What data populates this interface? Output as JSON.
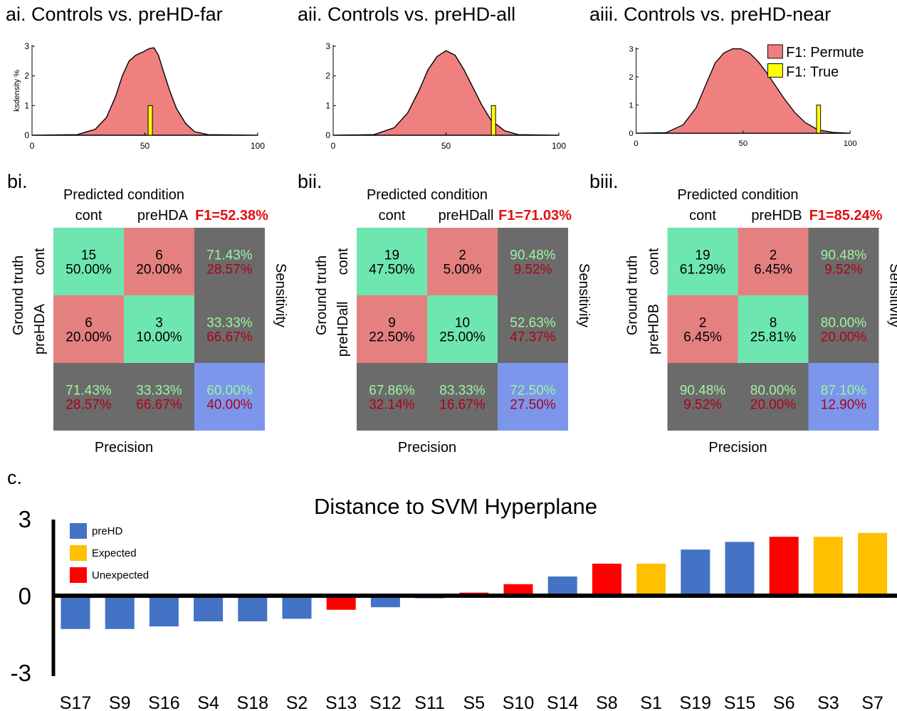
{
  "density_panels": [
    {
      "label": "ai. Controls vs. preHD-far",
      "ylabel": "ksdensity %",
      "f1_true": 52.38
    },
    {
      "label": "aii. Controls vs. preHD-all",
      "ylabel": "",
      "f1_true": 71.03
    },
    {
      "label": "aiii. Controls vs. preHD-near",
      "ylabel": "",
      "f1_true": 85.24
    }
  ],
  "density_axes": {
    "xlim": [
      0,
      100
    ],
    "ylim": [
      0,
      3
    ],
    "xticks": [
      "0",
      "50",
      "100"
    ],
    "yticks": [
      "0",
      "1",
      "2",
      "3"
    ]
  },
  "density_legend": {
    "permute": "F1: Permute",
    "true": "F1: True"
  },
  "colors": {
    "permute_fill": "#f08080",
    "true_bar": "#ffff00",
    "correct_cell": "#6ee6b0",
    "wrong_cell": "#e58080",
    "summary_cell": "#6b6b6b",
    "overall_cell": "#7b96ea",
    "good_text": "#9ef59e",
    "bad_text": "#b0001a",
    "f1_text": "#e01010",
    "preHD": "#4472c4",
    "expected": "#ffc000",
    "unexpected": "#ff0000"
  },
  "confusion_panels": [
    {
      "label": "bi.",
      "header": "Predicted condition",
      "pred_labels": [
        "cont",
        "preHDA"
      ],
      "f1": "F1=52.38%",
      "truth_title": "Ground truth",
      "truth_labels": [
        "cont",
        "preHDA"
      ],
      "sensitivity": "Sensitivity",
      "precision": "Precision",
      "cells": [
        [
          [
            "15",
            "50.00%"
          ],
          [
            "6",
            "20.00%"
          ]
        ],
        [
          [
            "6",
            "20.00%"
          ],
          [
            "3",
            "10.00%"
          ]
        ]
      ],
      "row_summary": [
        [
          "71.43%",
          "28.57%"
        ],
        [
          "33.33%",
          "66.67%"
        ]
      ],
      "col_summary": [
        [
          "71.43%",
          "28.57%"
        ],
        [
          "33.33%",
          "66.67%"
        ]
      ],
      "overall": [
        "60.00%",
        "40.00%"
      ]
    },
    {
      "label": "bii.",
      "header": "Predicted condition",
      "pred_labels": [
        "cont",
        "preHDall"
      ],
      "f1": "F1=71.03%",
      "truth_title": "Ground truth",
      "truth_labels": [
        "cont",
        "preHDall"
      ],
      "sensitivity": "Sensitivity",
      "precision": "Precision",
      "cells": [
        [
          [
            "19",
            "47.50%"
          ],
          [
            "2",
            "5.00%"
          ]
        ],
        [
          [
            "9",
            "22.50%"
          ],
          [
            "10",
            "25.00%"
          ]
        ]
      ],
      "row_summary": [
        [
          "90.48%",
          "9.52%"
        ],
        [
          "52.63%",
          "47.37%"
        ]
      ],
      "col_summary": [
        [
          "67.86%",
          "32.14%"
        ],
        [
          "83.33%",
          "16.67%"
        ]
      ],
      "overall": [
        "72.50%",
        "27.50%"
      ]
    },
    {
      "label": "biii.",
      "header": "Predicted condition",
      "pred_labels": [
        "cont",
        "preHDB"
      ],
      "f1": "F1=85.24%",
      "truth_title": "Ground truth",
      "truth_labels": [
        "cont",
        "preHDB"
      ],
      "sensitivity": "Sensitivity",
      "precision": "Precision",
      "cells": [
        [
          [
            "19",
            "61.29%"
          ],
          [
            "2",
            "6.45%"
          ]
        ],
        [
          [
            "2",
            "6.45%"
          ],
          [
            "8",
            "25.81%"
          ]
        ]
      ],
      "row_summary": [
        [
          "90.48%",
          "9.52%"
        ],
        [
          "80.00%",
          "20.00%"
        ]
      ],
      "col_summary": [
        [
          "90.48%",
          "9.52%"
        ],
        [
          "80.00%",
          "20.00%"
        ]
      ],
      "overall": [
        "87.10%",
        "12.90%"
      ]
    }
  ],
  "section_c_label": "c.",
  "chart_data": {
    "type": "bar",
    "title": "Distance to SVM Hyperplane",
    "xlabel": "",
    "ylabel": "",
    "ylim": [
      -3,
      3
    ],
    "yticks": [
      "3",
      "0",
      "-3"
    ],
    "categories": [
      "S17",
      "S9",
      "S16",
      "S4",
      "S18",
      "S2",
      "S13",
      "S12",
      "S11",
      "S5",
      "S10",
      "S14",
      "S8",
      "S1",
      "S19",
      "S15",
      "S6",
      "S3",
      "S7"
    ],
    "values": [
      -1.3,
      -1.3,
      -1.2,
      -1.0,
      -1.0,
      -0.9,
      -0.55,
      -0.45,
      -0.1,
      0.12,
      0.45,
      0.75,
      1.25,
      1.25,
      1.8,
      2.1,
      2.3,
      2.3,
      2.45
    ],
    "groups": [
      "preHD",
      "preHD",
      "preHD",
      "preHD",
      "preHD",
      "preHD",
      "Unexpected",
      "preHD",
      "preHD",
      "Unexpected",
      "Unexpected",
      "preHD",
      "Unexpected",
      "Expected",
      "preHD",
      "preHD",
      "Unexpected",
      "Expected",
      "Expected"
    ],
    "legend": [
      "preHD",
      "Expected",
      "Unexpected"
    ],
    "legend_position": "top-left"
  }
}
